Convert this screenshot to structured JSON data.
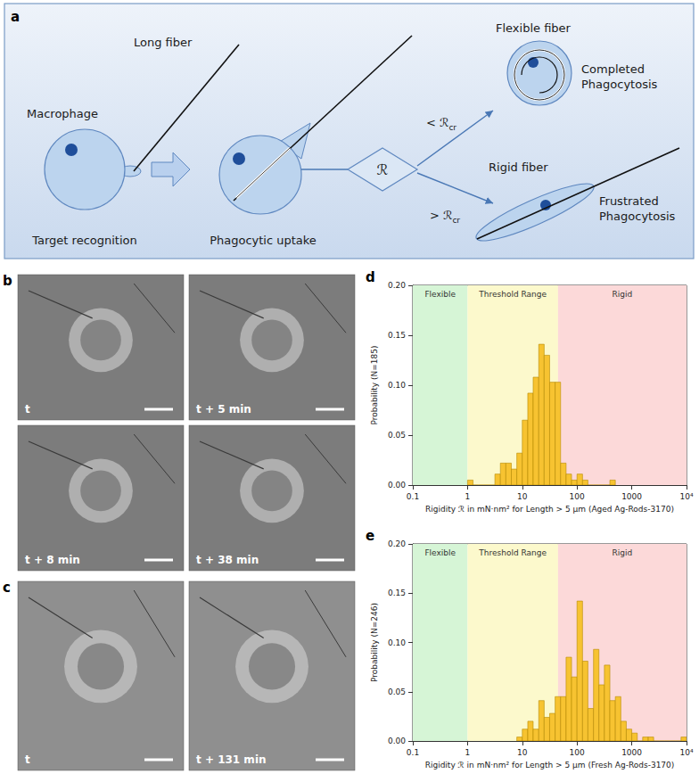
{
  "diagram": {
    "panel": "a",
    "long_fiber": "Long fiber",
    "macrophage": "Macrophage",
    "steps": [
      "Target recognition",
      "Phagocytic uptake"
    ],
    "decision": "ℛ",
    "branches": [
      {
        "text": "< ℛ",
        "sub": "cr",
        "fiber": "Flexible fiber",
        "outcome": "Completed Phagocytosis"
      },
      {
        "text": "> ℛ",
        "sub": "cr",
        "fiber": "Rigid fiber",
        "outcome": "Frustrated Phagocytosis"
      }
    ]
  },
  "micrographs": [
    {
      "panel": "b",
      "frames": [
        "t",
        "t + 5 min",
        "t + 8 min",
        "t + 38 min"
      ]
    },
    {
      "panel": "c",
      "frames": [
        "t",
        "t + 131 min"
      ]
    }
  ],
  "chart_data": [
    {
      "panel": "d",
      "type": "histogram",
      "x_label": "Rigidity ℛ in mN·nm² for Length > 5 µm (Aged Ag-Rods-3170)",
      "y_label": "Probability (N=185)",
      "bins": [
        1,
        1.26,
        1.58,
        2,
        2.51,
        3.16,
        3.98,
        5.01,
        6.31,
        7.94,
        10,
        12.6,
        15.8,
        20,
        25.1,
        31.6,
        39.8,
        50.1,
        63.1,
        79.4,
        100,
        126,
        158,
        200,
        251,
        316,
        398,
        501
      ],
      "values": [
        0.005,
        0,
        0,
        0,
        0,
        0.011,
        0.022,
        0.022,
        0.016,
        0.032,
        0.065,
        0.092,
        0.108,
        0.141,
        0.13,
        0.103,
        0.103,
        0.022,
        0.011,
        0.005,
        0.011,
        0.005,
        0,
        0,
        0,
        0,
        0.005
      ],
      "color": "#f7c331",
      "log": "x",
      "grid": false,
      "xlim": [
        0.1,
        10000
      ],
      "xticks": [
        0.1,
        1,
        10,
        100,
        1000,
        {
          "value": 10000,
          "label": "10⁴"
        }
      ],
      "ylim": [
        0,
        0.2
      ],
      "yticks": [
        {
          "value": 0,
          "label": "0.00"
        },
        0.05,
        {
          "value": 0.1,
          "label": "0.10"
        },
        0.15,
        {
          "value": 0.2,
          "label": "0.20"
        }
      ],
      "regions": [
        {
          "label": "Flexible",
          "from": 0.1,
          "to": 1,
          "color": "#d6f5d6"
        },
        {
          "label": "Threshold Range",
          "from": 1,
          "to": 45,
          "color": "#fcf9cc"
        },
        {
          "label": "Rigid",
          "from": 45,
          "to": 10000,
          "color": "#fcd9d9"
        }
      ]
    },
    {
      "panel": "e",
      "type": "histogram",
      "x_label": "Rigidity ℛ in mN·nm² for Length > 5 µm (Fresh Ag-Rods-3170)",
      "y_label": "Probability (N=246)",
      "bins": [
        7.94,
        10,
        12.6,
        15.8,
        20,
        25.1,
        31.6,
        39.8,
        50.1,
        63.1,
        79.4,
        100,
        126,
        158,
        200,
        251,
        316,
        398,
        501,
        631,
        794,
        1000,
        1260,
        1580,
        2000,
        2510,
        3160,
        3980,
        5010,
        6310,
        7940,
        10000
      ],
      "values": [
        0.004,
        0.012,
        0.02,
        0.012,
        0.041,
        0.024,
        0.028,
        0.045,
        0.045,
        0.085,
        0.065,
        0.142,
        0.081,
        0.033,
        0.093,
        0.057,
        0.077,
        0.041,
        0.045,
        0.02,
        0.012,
        0.008,
        0,
        0.004,
        0.004,
        0,
        0,
        0,
        0,
        0,
        0.004
      ],
      "color": "#f7c331",
      "log": "x",
      "grid": false,
      "xlim": [
        0.1,
        10000
      ],
      "xticks": [
        0.1,
        1,
        10,
        100,
        1000,
        {
          "value": 10000,
          "label": "10⁴"
        }
      ],
      "ylim": [
        0,
        0.2
      ],
      "yticks": [
        {
          "value": 0,
          "label": "0.00"
        },
        0.05,
        {
          "value": 0.1,
          "label": "0.10"
        },
        0.15,
        {
          "value": 0.2,
          "label": "0.20"
        }
      ],
      "regions": [
        {
          "label": "Flexible",
          "from": 0.1,
          "to": 1,
          "color": "#d6f5d6"
        },
        {
          "label": "Threshold Range",
          "from": 1,
          "to": 45,
          "color": "#fcf9cc"
        },
        {
          "label": "Rigid",
          "from": 45,
          "to": 10000,
          "color": "#fcd9d9"
        }
      ]
    }
  ]
}
